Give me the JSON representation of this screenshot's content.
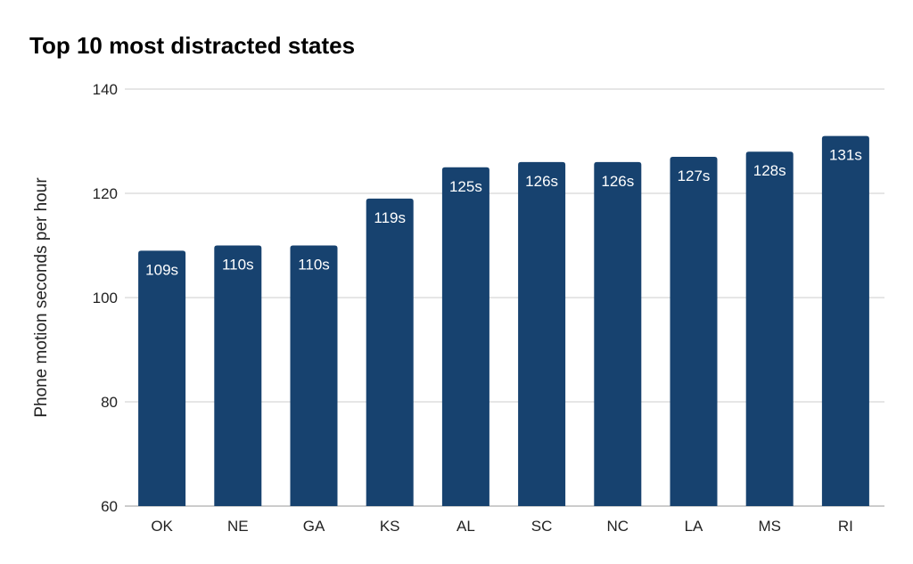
{
  "chart_data": {
    "type": "bar",
    "title": "Top 10 most distracted states",
    "xlabel": "",
    "ylabel": "Phone motion seconds per hour",
    "categories": [
      "OK",
      "NE",
      "GA",
      "KS",
      "AL",
      "SC",
      "NC",
      "LA",
      "MS",
      "RI"
    ],
    "values": [
      109,
      110,
      110,
      119,
      125,
      126,
      126,
      127,
      128,
      131
    ],
    "data_labels": [
      "109s",
      "110s",
      "110s",
      "119s",
      "125s",
      "126s",
      "126s",
      "127s",
      "128s",
      "131s"
    ],
    "ylim": [
      60,
      140
    ],
    "yticks": [
      60,
      80,
      100,
      120,
      140
    ],
    "grid": true,
    "legend": "none",
    "bar_color": "#17426F"
  }
}
